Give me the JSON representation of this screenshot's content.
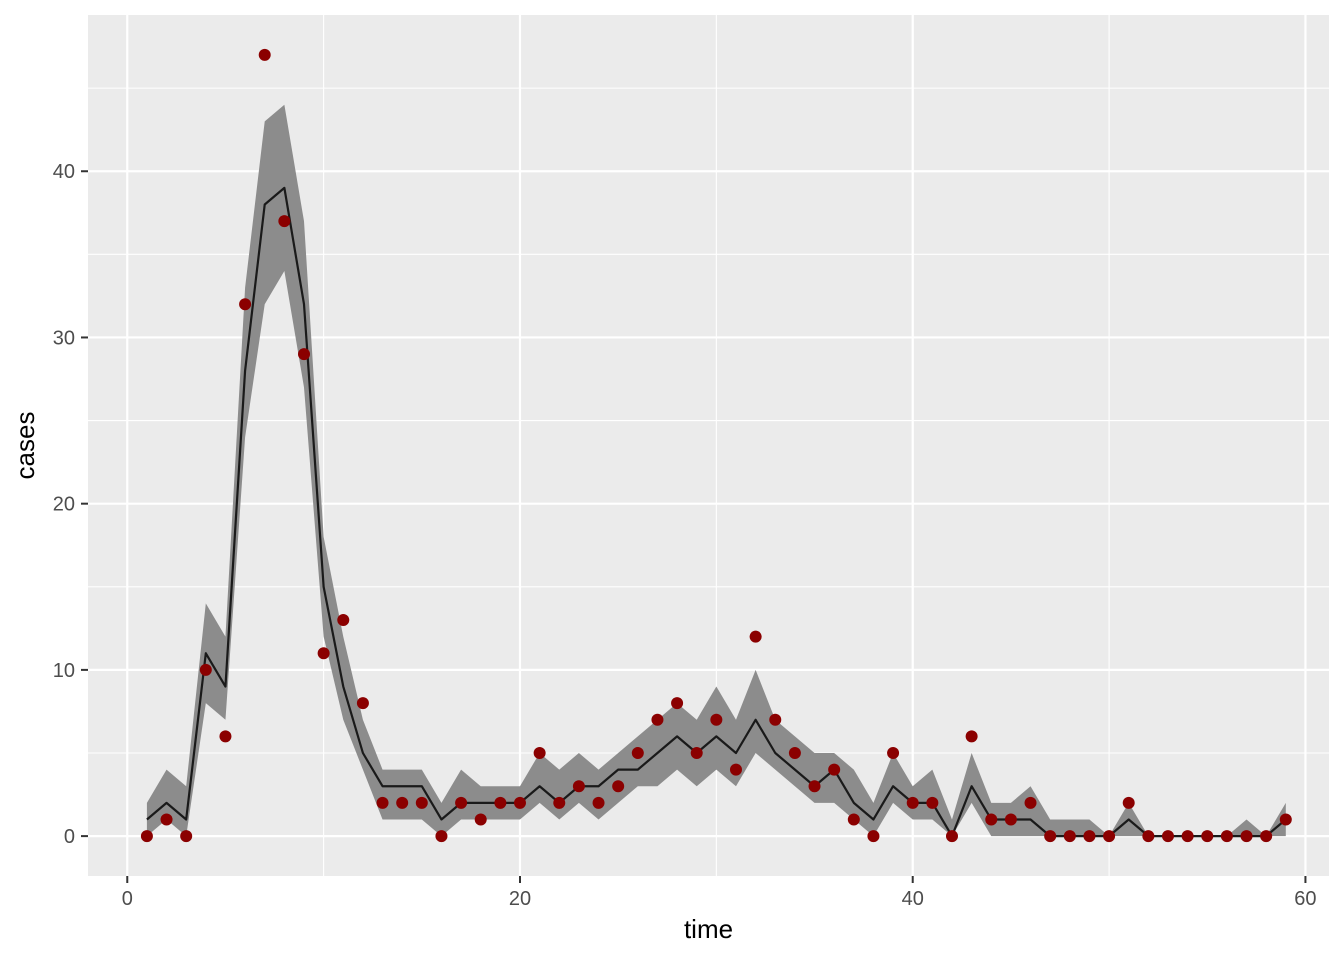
{
  "chart_data": {
    "type": "line",
    "xlabel": "time",
    "ylabel": "cases",
    "xlim": [
      -2,
      61.2
    ],
    "ylim": [
      -2.4,
      49.4
    ],
    "x_ticks": [
      0,
      20,
      40,
      60
    ],
    "y_ticks": [
      0,
      10,
      20,
      30,
      40
    ],
    "x_tick_labels": [
      "0",
      "20",
      "40",
      "60"
    ],
    "y_tick_labels": [
      "0",
      "10",
      "20",
      "30",
      "40"
    ],
    "grid": true,
    "legend": "none",
    "colors": {
      "panel": "#ebebeb",
      "grid_major": "#ffffff",
      "ribbon": "#8c8c8c",
      "line": "#1a1a1a",
      "points": "#8b0000"
    },
    "series": [
      {
        "kind": "points",
        "x": [
          1,
          2,
          3,
          4,
          5,
          6,
          7,
          8,
          9,
          10,
          11,
          12,
          13,
          14,
          15,
          16,
          17,
          18,
          19,
          20,
          21,
          22,
          23,
          24,
          25,
          26,
          27,
          28,
          29,
          30,
          31,
          32,
          33,
          34,
          35,
          36,
          37,
          38,
          39,
          40,
          41,
          42,
          43,
          44,
          45,
          46,
          47,
          48,
          49,
          50,
          51,
          52,
          53,
          54,
          55,
          56,
          57,
          58,
          59
        ],
        "y": [
          0,
          1,
          0,
          10,
          6,
          32,
          47,
          37,
          29,
          11,
          13,
          8,
          2,
          2,
          2,
          0,
          2,
          1,
          2,
          2,
          5,
          2,
          3,
          2,
          3,
          5,
          7,
          8,
          5,
          7,
          4,
          12,
          7,
          5,
          3,
          4,
          1,
          0,
          5,
          2,
          2,
          0,
          6,
          1,
          1,
          2,
          0,
          0,
          0,
          0,
          2,
          0,
          0,
          0,
          0,
          0,
          0,
          0,
          1
        ]
      },
      {
        "kind": "line",
        "x": [
          1,
          2,
          3,
          4,
          5,
          6,
          7,
          8,
          9,
          10,
          11,
          12,
          13,
          14,
          15,
          16,
          17,
          18,
          19,
          20,
          21,
          22,
          23,
          24,
          25,
          26,
          27,
          28,
          29,
          30,
          31,
          32,
          33,
          34,
          35,
          36,
          37,
          38,
          39,
          40,
          41,
          42,
          43,
          44,
          45,
          46,
          47,
          48,
          49,
          50,
          51,
          52,
          53,
          54,
          55,
          56,
          57,
          58,
          59
        ],
        "y": [
          1,
          2,
          1,
          11,
          9,
          28,
          38,
          39,
          32,
          15,
          9,
          5,
          3,
          3,
          3,
          1,
          2,
          2,
          2,
          2,
          3,
          2,
          3,
          3,
          4,
          4,
          5,
          6,
          5,
          6,
          5,
          7,
          5,
          4,
          3,
          4,
          2,
          1,
          3,
          2,
          2,
          0,
          3,
          1,
          1,
          1,
          0,
          0,
          0,
          0,
          1,
          0,
          0,
          0,
          0,
          0,
          0,
          0,
          1
        ]
      },
      {
        "kind": "ribbon",
        "x": [
          1,
          2,
          3,
          4,
          5,
          6,
          7,
          8,
          9,
          10,
          11,
          12,
          13,
          14,
          15,
          16,
          17,
          18,
          19,
          20,
          21,
          22,
          23,
          24,
          25,
          26,
          27,
          28,
          29,
          30,
          31,
          32,
          33,
          34,
          35,
          36,
          37,
          38,
          39,
          40,
          41,
          42,
          43,
          44,
          45,
          46,
          47,
          48,
          49,
          50,
          51,
          52,
          53,
          54,
          55,
          56,
          57,
          58,
          59
        ],
        "lower": [
          0,
          1,
          0,
          8,
          7,
          24,
          32,
          34,
          27,
          12,
          7,
          4,
          1,
          1,
          1,
          0,
          1,
          1,
          1,
          1,
          2,
          1,
          2,
          1,
          2,
          3,
          3,
          4,
          3,
          4,
          3,
          5,
          4,
          3,
          2,
          2,
          1,
          0,
          2,
          1,
          1,
          0,
          2,
          0,
          0,
          0,
          0,
          0,
          0,
          0,
          0,
          0,
          0,
          0,
          0,
          0,
          0,
          0,
          0
        ],
        "upper": [
          2,
          4,
          3,
          14,
          12,
          33,
          43,
          44,
          37,
          18,
          12,
          7,
          4,
          4,
          4,
          2,
          4,
          3,
          3,
          3,
          5,
          4,
          5,
          4,
          5,
          6,
          7,
          8,
          7,
          9,
          7,
          10,
          7,
          6,
          5,
          5,
          4,
          2,
          5,
          3,
          4,
          1,
          5,
          2,
          2,
          3,
          1,
          1,
          1,
          0,
          2,
          0,
          0,
          0,
          0,
          0,
          1,
          0,
          2
        ]
      }
    ]
  }
}
